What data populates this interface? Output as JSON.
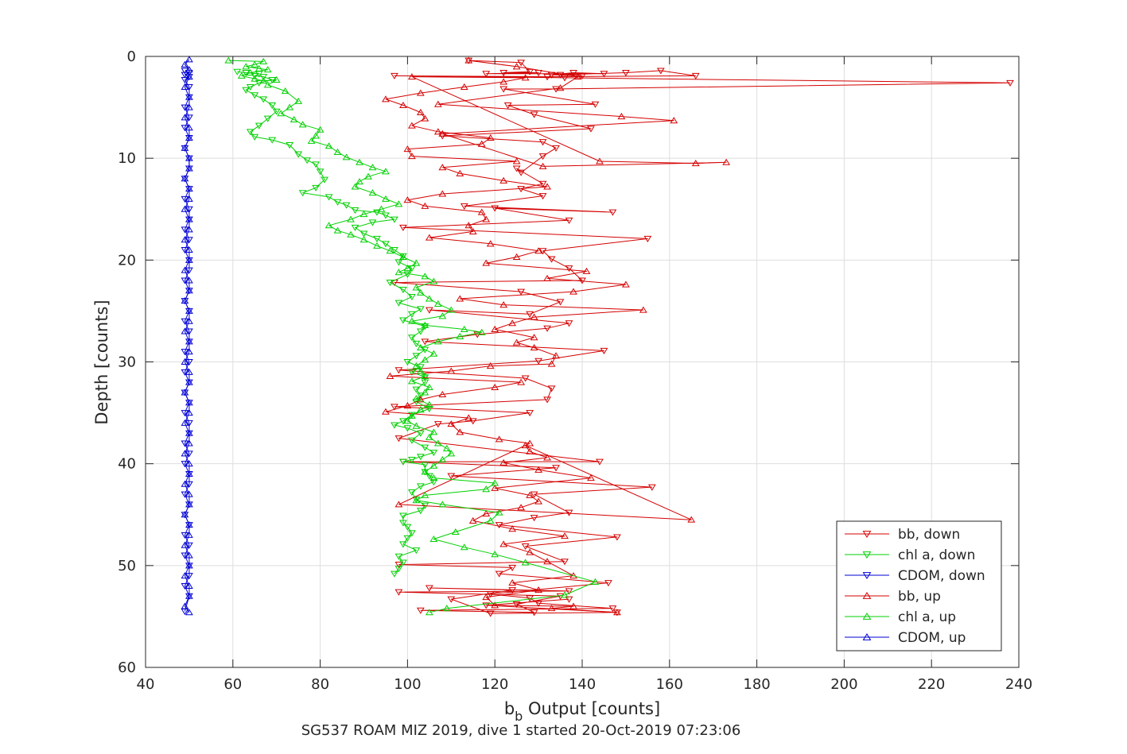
{
  "chart_data": {
    "type": "line",
    "title": "",
    "xlabel": "b_b Output [counts]",
    "ylabel": "Depth [counts]",
    "caption": "SG537 ROAM MIZ 2019, dive 1 started 20-Oct-2019 07:23:06",
    "xlim": [
      40,
      240
    ],
    "ylim": [
      0,
      60
    ],
    "y_reversed": true,
    "grid": true,
    "x_ticks": [
      40,
      60,
      80,
      100,
      120,
      140,
      160,
      180,
      200,
      220,
      240
    ],
    "y_ticks": [
      0,
      10,
      20,
      30,
      40,
      50,
      60
    ],
    "legend_position": "bottom-right",
    "series": [
      {
        "name": "bb, down",
        "color": "#d40000",
        "marker": "triangle-down",
        "x": [
          114,
          126,
          128,
          122,
          130,
          118,
          145,
          138,
          133,
          140,
          135,
          150,
          158,
          166,
          132,
          97,
          136,
          238,
          134,
          122,
          143,
          123,
          129,
          142,
          108,
          131,
          134,
          131,
          126,
          125,
          131,
          126,
          131,
          113,
          147,
          120,
          137,
          99,
          155,
          131,
          133,
          137,
          140,
          97,
          126,
          135,
          128,
          105,
          137,
          132,
          116,
          104,
          145,
          130,
          98,
          127,
          133,
          132,
          97,
          128,
          115,
          107,
          98,
          144,
          99,
          134,
          110,
          156,
          129,
          137,
          129,
          121,
          148,
          127,
          136,
          98,
          124,
          121,
          146,
          119,
          128,
          130,
          147,
          103,
          129,
          125,
          135,
          98,
          137,
          105,
          124,
          110,
          119,
          148,
          118,
          137
        ],
        "y": [
          0.4,
          0.6,
          1.5,
          1.6,
          1.6,
          1.7,
          1.7,
          1.6,
          1.8,
          1.9,
          1.8,
          1.6,
          1.4,
          1.9,
          2.0,
          1.9,
          2.1,
          2.6,
          3.2,
          3.2,
          4.7,
          4.8,
          5.7,
          7.1,
          7.8,
          8.4,
          9.0,
          9.8,
          11.4,
          11.0,
          12.5,
          13.0,
          13.7,
          14.7,
          15.3,
          14.9,
          16.1,
          16.8,
          17.9,
          19.1,
          19.9,
          20.8,
          22.0,
          22.2,
          23.1,
          24.1,
          25.3,
          24.9,
          26.2,
          26.7,
          27.3,
          28.0,
          28.9,
          29.9,
          30.8,
          31.6,
          32.6,
          33.7,
          34.4,
          35.0,
          35.8,
          36.1,
          37.5,
          39.8,
          39.8,
          40.4,
          41.2,
          42.3,
          43.0,
          44.8,
          45.3,
          46.0,
          47.2,
          48.1,
          49.6,
          49.9,
          50.2,
          50.8,
          51.7,
          52.8,
          53.2,
          53.7,
          54.2,
          54.4,
          54.6,
          53.8,
          53.0,
          52.6,
          52.5,
          52.2,
          52.4,
          53.3,
          54.7,
          54.6,
          53.9,
          53.3
        ]
      },
      {
        "name": "chl a, down",
        "color": "#00d000",
        "marker": "triangle-down",
        "x": [
          61,
          63,
          66,
          65,
          67,
          69,
          66,
          64,
          63,
          65,
          67,
          69,
          70,
          68,
          66,
          64,
          65,
          69,
          73,
          75,
          77,
          79,
          80,
          81,
          79,
          76,
          82,
          84,
          86,
          88,
          93,
          95,
          97,
          92,
          88,
          90,
          93,
          95,
          97,
          99,
          98,
          101,
          100,
          96,
          99,
          101,
          98,
          103,
          101,
          99,
          104,
          103,
          101,
          102,
          104,
          102,
          100,
          103,
          101,
          104,
          104,
          102,
          103,
          102,
          105,
          101,
          99,
          97,
          100,
          103,
          101,
          104,
          106,
          103,
          101,
          99,
          104,
          104,
          105,
          106,
          103,
          101,
          102,
          104,
          103,
          99,
          99,
          100,
          101,
          100,
          99,
          102,
          98,
          99,
          98,
          97
        ],
        "y": [
          1.5,
          1.6,
          1.7,
          1.9,
          2.0,
          2.3,
          2.6,
          3.0,
          3.3,
          3.8,
          4.2,
          4.8,
          5.4,
          6.1,
          6.8,
          7.4,
          7.9,
          8.2,
          8.7,
          9.6,
          10.2,
          10.6,
          11.3,
          12.1,
          12.9,
          13.4,
          13.8,
          14.3,
          14.6,
          15.1,
          15.3,
          15.6,
          16.0,
          16.3,
          16.8,
          17.4,
          17.9,
          18.4,
          19.0,
          19.6,
          20.2,
          20.8,
          21.4,
          22.2,
          22.9,
          23.6,
          24.2,
          24.8,
          25.3,
          25.9,
          26.5,
          27.0,
          27.6,
          28.2,
          28.8,
          29.4,
          30.0,
          30.5,
          31.0,
          31.5,
          32.0,
          32.7,
          33.3,
          33.9,
          34.6,
          35.2,
          35.8,
          36.2,
          36.5,
          37.0,
          37.7,
          38.4,
          38.9,
          39.3,
          39.6,
          39.8,
          40.1,
          40.8,
          41.2,
          41.8,
          42.2,
          42.8,
          43.5,
          44.1,
          44.6,
          45.1,
          45.8,
          46.2,
          46.8,
          47.3,
          47.9,
          48.5,
          49.1,
          49.7,
          50.3,
          50.8
        ]
      },
      {
        "name": "CDOM, down",
        "color": "#0000d4",
        "marker": "triangle-down",
        "x": [
          49,
          50,
          49,
          50,
          49,
          50,
          50,
          49,
          50,
          49,
          50,
          49,
          50,
          50,
          49,
          50,
          49,
          50,
          50,
          49,
          50,
          49,
          50,
          50,
          49,
          50,
          49,
          50,
          49,
          50,
          50,
          49,
          50,
          49,
          50,
          49,
          50,
          49,
          50,
          50,
          49,
          50,
          49,
          50,
          50,
          49,
          50,
          49,
          50,
          49,
          50,
          49,
          50,
          50,
          49,
          50,
          49
        ],
        "y": [
          1.4,
          1.6,
          1.8,
          2.0,
          2.3,
          3.0,
          4.0,
          5.0,
          6.0,
          7.0,
          8.0,
          9.0,
          10.0,
          11.0,
          12.0,
          13.0,
          14.0,
          15.0,
          16.0,
          17.0,
          18.0,
          19.0,
          20.0,
          21.0,
          22.0,
          23.0,
          24.0,
          25.0,
          26.0,
          27.0,
          28.0,
          29.0,
          30.0,
          31.0,
          32.0,
          33.0,
          34.0,
          35.0,
          36.0,
          37.0,
          38.0,
          39.0,
          40.0,
          41.0,
          42.0,
          43.0,
          44.0,
          45.0,
          46.0,
          47.0,
          48.0,
          49.0,
          50.0,
          51.0,
          52.0,
          53.0,
          54.5
        ]
      },
      {
        "name": "bb, up",
        "color": "#d40000",
        "marker": "triangle-up",
        "x": [
          148,
          133,
          138,
          120,
          118,
          130,
          124,
          138,
          132,
          128,
          122,
          136,
          124,
          115,
          118,
          126,
          130,
          128,
          120,
          142,
          130,
          122,
          132,
          128,
          127,
          165,
          98,
          128,
          121,
          112,
          110,
          114,
          95,
          100,
          103,
          108,
          120,
          126,
          96,
          110,
          119,
          133,
          134,
          129,
          125,
          129,
          120,
          124,
          129,
          154,
          122,
          112,
          138,
          150,
          132,
          141,
          118,
          125,
          130,
          119,
          105,
          115,
          114,
          118,
          117,
          104,
          100,
          108,
          132,
          122,
          112,
          108,
          125,
          101,
          100,
          117,
          119,
          107,
          101,
          104,
          103,
          99,
          95,
          103,
          113,
          122,
          127,
          101,
          144,
          166,
          173,
          131,
          108,
          161,
          149,
          107,
          135,
          139,
          125,
          114
        ],
        "y": [
          54.6,
          54.2,
          54.0,
          53.9,
          53.1,
          52.4,
          51.7,
          51.0,
          49.6,
          48.7,
          47.9,
          47.1,
          46.4,
          45.6,
          44.9,
          44.3,
          43.7,
          43.1,
          42.4,
          41.4,
          40.6,
          39.9,
          39.4,
          38.8,
          38.2,
          45.5,
          44.0,
          38.0,
          37.6,
          36.9,
          36.1,
          35.5,
          34.9,
          34.3,
          33.7,
          33.2,
          32.5,
          32.0,
          31.4,
          30.9,
          30.4,
          30.2,
          29.4,
          28.6,
          28.1,
          27.6,
          26.8,
          26.2,
          25.6,
          24.9,
          24.4,
          23.8,
          23.1,
          22.4,
          21.8,
          21.1,
          20.3,
          19.7,
          19.1,
          18.4,
          17.8,
          17.2,
          16.6,
          16.0,
          15.3,
          14.7,
          14.1,
          13.5,
          12.8,
          12.2,
          11.5,
          10.9,
          10.3,
          9.8,
          9.1,
          8.6,
          8.0,
          7.4,
          6.8,
          6.1,
          5.5,
          4.8,
          4.2,
          3.6,
          3.0,
          2.5,
          2.1,
          2.0,
          10.3,
          10.5,
          10.4,
          10.8,
          7.6,
          6.3,
          5.9,
          4.7,
          3.1,
          2.0,
          1.0,
          0.4
        ]
      },
      {
        "name": "chl a, up",
        "color": "#00d000",
        "marker": "triangle-up",
        "x": [
          59,
          67,
          65,
          63,
          66,
          68,
          64,
          62,
          65,
          67,
          70,
          68,
          72,
          75,
          73,
          71,
          74,
          76,
          80,
          79,
          78,
          82,
          84,
          86,
          89,
          92,
          95,
          91,
          89,
          88,
          92,
          95,
          98,
          94,
          90,
          87,
          82,
          84,
          87,
          90,
          93,
          96,
          99,
          102,
          100,
          98,
          104,
          106,
          102,
          103,
          105,
          107,
          110,
          108,
          101,
          104,
          113,
          117,
          112,
          107,
          103,
          106,
          104,
          102,
          103,
          104,
          101,
          105,
          104,
          102,
          105,
          103,
          101,
          100,
          102,
          106,
          105,
          107,
          109,
          110,
          108,
          106,
          104,
          106,
          120,
          118,
          104,
          102,
          108,
          121,
          119,
          111,
          106,
          113,
          120,
          127,
          143,
          136,
          109,
          105
        ],
        "y": [
          0.4,
          0.5,
          0.8,
          1.0,
          1.2,
          1.3,
          1.6,
          1.9,
          2.2,
          2.4,
          2.3,
          2.8,
          3.4,
          4.4,
          5.0,
          5.6,
          6.2,
          6.7,
          7.2,
          7.8,
          8.3,
          8.8,
          9.4,
          9.9,
          10.4,
          10.9,
          11.3,
          11.8,
          12.3,
          12.8,
          13.4,
          14.0,
          14.5,
          15.0,
          15.5,
          16.0,
          16.6,
          17.1,
          17.5,
          18.0,
          18.6,
          19.1,
          19.7,
          20.3,
          20.8,
          21.2,
          21.6,
          22.1,
          22.7,
          23.2,
          23.8,
          24.3,
          24.9,
          25.5,
          26.0,
          26.4,
          26.8,
          27.1,
          27.5,
          28.0,
          28.6,
          29.2,
          29.8,
          30.4,
          30.9,
          31.4,
          31.9,
          32.5,
          33.0,
          33.6,
          34.2,
          34.7,
          35.3,
          35.8,
          36.3,
          36.9,
          37.4,
          38.0,
          38.5,
          39.0,
          39.6,
          40.2,
          40.8,
          41.4,
          41.9,
          42.5,
          43.1,
          43.6,
          44.0,
          44.8,
          45.6,
          46.7,
          47.4,
          48.2,
          48.9,
          49.7,
          51.6,
          52.9,
          54.2,
          54.6
        ]
      },
      {
        "name": "CDOM, up",
        "color": "#0000d4",
        "marker": "triangle-up",
        "x": [
          50,
          49,
          50,
          50,
          49,
          50,
          50,
          49,
          50,
          50,
          49,
          50,
          50,
          49,
          50,
          50,
          49,
          50,
          50,
          49,
          50,
          50,
          49,
          50,
          50,
          49,
          50,
          50,
          49,
          50,
          50,
          49,
          50,
          50,
          49,
          50,
          50,
          49,
          50,
          50,
          49,
          50,
          50,
          49,
          50,
          50,
          49,
          50,
          50,
          49,
          50,
          50,
          49,
          50,
          50,
          49,
          50
        ],
        "y": [
          0.3,
          0.8,
          1.3,
          2.0,
          3.0,
          4.0,
          5.0,
          6.0,
          7.0,
          8.0,
          9.0,
          10.0,
          11.0,
          12.0,
          13.0,
          14.0,
          15.0,
          16.0,
          17.0,
          18.0,
          19.0,
          20.0,
          21.0,
          22.0,
          23.0,
          24.0,
          25.0,
          26.0,
          27.0,
          28.0,
          29.0,
          30.0,
          31.0,
          32.0,
          33.0,
          34.0,
          35.0,
          36.0,
          37.0,
          38.0,
          39.0,
          40.0,
          41.0,
          42.0,
          43.0,
          44.0,
          45.0,
          46.0,
          47.0,
          48.0,
          49.0,
          50.0,
          51.0,
          52.0,
          53.0,
          54.0,
          54.6
        ]
      }
    ]
  }
}
